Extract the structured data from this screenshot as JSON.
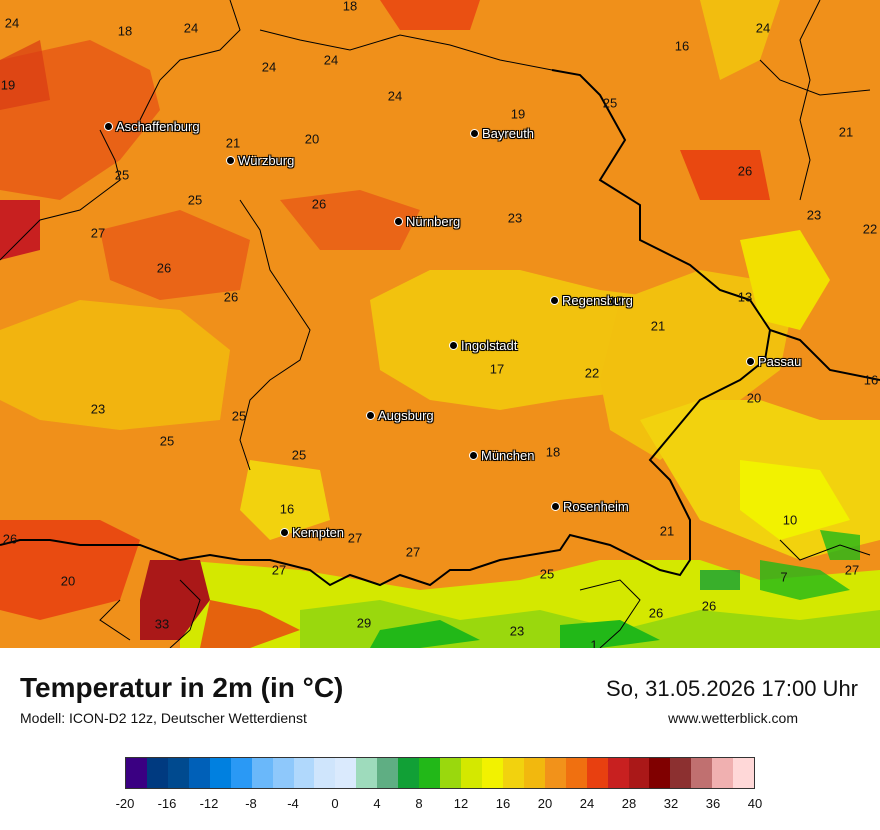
{
  "title": "Temperatur in 2m (in °C)",
  "model": "Modell: ICON-D2 12z, Deutscher Wetterdienst",
  "datetime": "So, 31.05.2026 17:00 Uhr",
  "website": "www.wetterblick.com",
  "cities": [
    {
      "name": "Aschaffenburg",
      "key": "aschaffenburg"
    },
    {
      "name": "Würzburg",
      "key": "wuerzburg"
    },
    {
      "name": "Bayreuth",
      "key": "bayreuth"
    },
    {
      "name": "Nürnberg",
      "key": "nuernberg"
    },
    {
      "name": "Regensburg",
      "key": "regensburg"
    },
    {
      "name": "Ingolstadt",
      "key": "ingolstadt"
    },
    {
      "name": "Passau",
      "key": "passau"
    },
    {
      "name": "Augsburg",
      "key": "augsburg"
    },
    {
      "name": "München",
      "key": "muenchen"
    },
    {
      "name": "Rosenheim",
      "key": "rosenheim"
    },
    {
      "name": "Kempten",
      "key": "kempten"
    }
  ],
  "temperature_labels": [
    "24",
    "18",
    "24",
    "18",
    "16",
    "24",
    "19",
    "24",
    "24",
    "24",
    "19",
    "25",
    "20",
    "21",
    "21",
    "25",
    "25",
    "26",
    "26",
    "27",
    "23",
    "23",
    "26",
    "26",
    "22",
    "17",
    "21",
    "13",
    "17",
    "22",
    "16",
    "23",
    "25",
    "25",
    "20",
    "25",
    "18",
    "16",
    "10",
    "21",
    "26",
    "27",
    "27",
    "27",
    "20",
    "7",
    "27",
    "25",
    "33",
    "29",
    "23",
    "26",
    "26",
    "1"
  ],
  "legend": {
    "colors": [
      "#3a0082",
      "#003a80",
      "#004a8f",
      "#0060b8",
      "#0080e0",
      "#2a99f5",
      "#6ab8fa",
      "#8ec8fb",
      "#b0d8fc",
      "#cfe5fc",
      "#daeafd",
      "#9edbbc",
      "#5fae83",
      "#11a036",
      "#22b818",
      "#9ad80d",
      "#d4e800",
      "#f2f200",
      "#f2d20e",
      "#f2b80e",
      "#f2921a",
      "#f07010",
      "#e84010",
      "#c82020",
      "#aa1818",
      "#800000",
      "#8c3030",
      "#c07070",
      "#f0b0b0",
      "#ffd8d8"
    ],
    "tick_labels": [
      "-20",
      "-16",
      "-12",
      "-8",
      "-4",
      "0",
      "4",
      "8",
      "12",
      "16",
      "20",
      "24",
      "28",
      "32",
      "36",
      "40"
    ]
  }
}
